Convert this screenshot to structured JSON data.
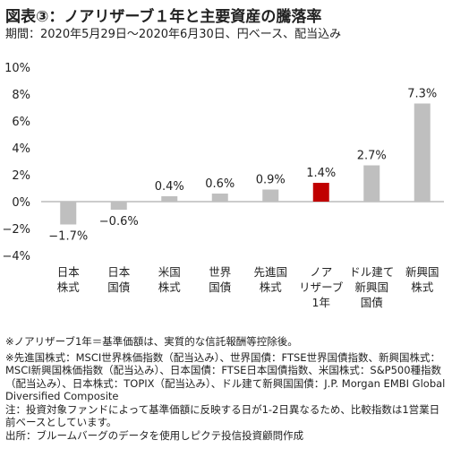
{
  "header": {
    "title": "図表③：ノアリザーブ１年と主要資産の騰落率",
    "subtitle": "期間：2020年5月29日～2020年6月30日、円ベース、配当込み"
  },
  "chart_data": {
    "type": "bar",
    "categories": [
      [
        "日本",
        "株式"
      ],
      [
        "日本",
        "国債"
      ],
      [
        "米国",
        "株式"
      ],
      [
        "世界",
        "国債"
      ],
      [
        "先進国",
        "株式"
      ],
      [
        "ノア",
        "リザーブ",
        "1年"
      ],
      [
        "ドル建て",
        "新興国",
        "国債"
      ],
      [
        "新興国",
        "株式"
      ]
    ],
    "values": [
      -1.7,
      -0.6,
      0.4,
      0.6,
      0.9,
      1.4,
      2.7,
      7.3
    ],
    "value_labels": [
      "−1.7%",
      "−0.6%",
      "0.4%",
      "0.6%",
      "0.9%",
      "1.4%",
      "2.7%",
      "7.3%"
    ],
    "y_ticks": [
      10,
      8,
      6,
      4,
      2,
      0,
      -2,
      -4
    ],
    "y_tick_labels": [
      "10%",
      "8%",
      "6%",
      "4%",
      "2%",
      "0%",
      "−2%",
      "−4%"
    ],
    "ylim": [
      -4,
      10
    ],
    "grid": false,
    "colors": {
      "default": "#bfbfbf",
      "highlight": "#c00000",
      "axis": "#9a9a9a"
    },
    "highlight_index": 5
  },
  "notes": [
    "※ノアリザーブ1年＝基準価額は、実質的な信託報酬等控除後。",
    "※先進国株式：MSCI世界株価指数（配当込み）、世界国債：FTSE世界国債指数、新興国株式：MSCI新興国株価指数（配当込み）、日本国債：FTSE日本国債指数、米国株式：S&P500種指数（配当込み）、日本株式：TOPIX（配当込み）、ドル建て新興国国債：J.P. Morgan EMBI Global Diversified Composite",
    "注：投資対象ファンドによって基準価額に反映する日が1-2日異なるため、比較指数は1営業日前ベースとしています。",
    "出所：ブルームバーグのデータを使用しピクテ投信投資顧問作成"
  ]
}
